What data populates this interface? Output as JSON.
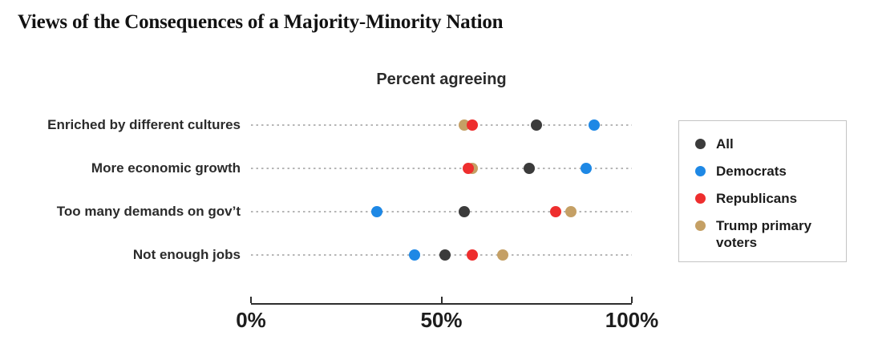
{
  "title": "Views of the Consequences of a Majority-Minority Nation",
  "chart_data": {
    "type": "scatter",
    "variant": "dot-plot",
    "subtitle": "Percent agreeing",
    "categories": [
      "Enriched by different cultures",
      "More economic growth",
      "Too many demands on gov’t",
      "Not enough jobs"
    ],
    "series": [
      {
        "name": "All",
        "color": "#3b3b3b",
        "values": [
          75,
          73,
          56,
          51
        ]
      },
      {
        "name": "Democrats",
        "color": "#1e88e5",
        "values": [
          90,
          88,
          33,
          43
        ]
      },
      {
        "name": "Republicans",
        "color": "#ee2e2e",
        "values": [
          58,
          57,
          80,
          58
        ]
      },
      {
        "name": "Trump primary voters",
        "color": "#c5a065",
        "values": [
          56,
          58,
          84,
          66
        ]
      }
    ],
    "xlim": [
      0,
      100
    ],
    "x_ticks": [
      {
        "value": 0,
        "label": "0%"
      },
      {
        "value": 50,
        "label": "50%"
      },
      {
        "value": 100,
        "label": "100%"
      }
    ],
    "legend_position": "right",
    "row_guides": "dotted",
    "grid": "off"
  }
}
